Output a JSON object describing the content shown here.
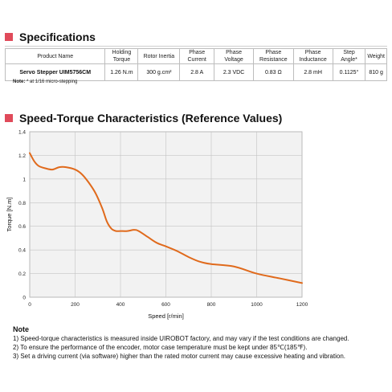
{
  "specifications": {
    "title": "Specifications",
    "columns": [
      "Product Name",
      "Holding Torque",
      "Rotor Inertia",
      "Phase Current",
      "Phase Voltage",
      "Phase Resistance",
      "Phase Inductance",
      "Step Angle*",
      "Weight"
    ],
    "row": [
      "Servo Stepper UIM5756CM",
      "1.26 N.m",
      "300 g.cm²",
      "2.8 A",
      "2.3 VDC",
      "0.83 Ω",
      "2.8 mH",
      "0.1125°",
      "810 g"
    ],
    "note_label": "Note:",
    "note_text": "* at 1/16 micro-stepping"
  },
  "speed_torque": {
    "title": "Speed-Torque Characteristics (Reference Values)"
  },
  "chart_data": {
    "type": "line",
    "title": "",
    "xlabel": "Speed [r/min]",
    "ylabel": "Torque [N.m]",
    "xlim": [
      0,
      1200
    ],
    "ylim": [
      0,
      1.4
    ],
    "xticks": [
      0,
      200,
      400,
      600,
      800,
      1000,
      1200
    ],
    "yticks": [
      0,
      0.2,
      0.4,
      0.6,
      0.8,
      1.0,
      1.2,
      1.4
    ],
    "ytick_labels": [
      "0",
      "0.2",
      "0.4",
      "0.6",
      "0.8",
      "1",
      "1.2",
      "1.4"
    ],
    "grid": true,
    "series": [
      {
        "color": "#e06a1c",
        "x": [
          0,
          20,
          40,
          70,
          100,
          130,
          160,
          200,
          230,
          260,
          290,
          320,
          340,
          360,
          380,
          400,
          430,
          460,
          480,
          520,
          560,
          600,
          650,
          700,
          750,
          800,
          900,
          1000,
          1100,
          1200
        ],
        "y": [
          1.22,
          1.15,
          1.11,
          1.09,
          1.08,
          1.1,
          1.1,
          1.08,
          1.04,
          0.97,
          0.88,
          0.75,
          0.64,
          0.58,
          0.56,
          0.56,
          0.56,
          0.57,
          0.56,
          0.51,
          0.46,
          0.43,
          0.39,
          0.34,
          0.3,
          0.28,
          0.26,
          0.2,
          0.16,
          0.12
        ]
      }
    ]
  },
  "notes": {
    "title": "Note",
    "items": [
      "1)  Speed-torque characteristics is measured inside UIROBOT factory, and may vary if the test conditions are changed.",
      "2)  To ensure the performance of the encoder, motor case temperature must be kept under 85℃(185℉).",
      "3)  Set a driving current (via software) higher than the rated motor current may cause excessive heating and vibration."
    ]
  }
}
